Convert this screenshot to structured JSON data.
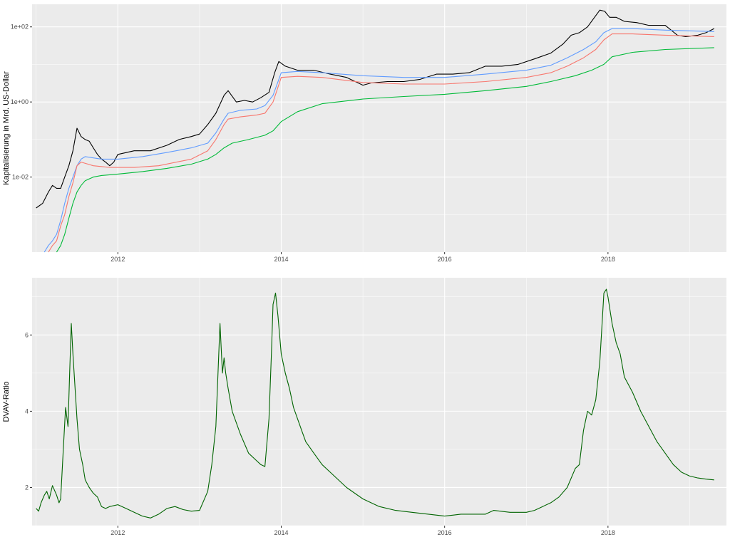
{
  "chart_data": [
    {
      "type": "line",
      "title": "",
      "xlabel": "",
      "ylabel": "Kapitalisierung in Mrd. US-Dollar",
      "y_scale": "log10",
      "xlim": [
        2010.95,
        2019.45
      ],
      "ylim": [
        0.0001,
        400
      ],
      "x_ticks": [
        2012,
        2014,
        2016,
        2018
      ],
      "x_tick_labels": [
        "2012",
        "2014",
        "2016",
        "2018"
      ],
      "y_ticks": [
        0.01,
        1,
        100
      ],
      "y_tick_labels": [
        "1e-02",
        "1e+00",
        "1e+02"
      ],
      "grid": true,
      "legend": "none",
      "series": [
        {
          "color": "#000000",
          "x": [
            2011.0,
            2011.08,
            2011.15,
            2011.2,
            2011.25,
            2011.3,
            2011.35,
            2011.4,
            2011.45,
            2011.5,
            2011.55,
            2011.6,
            2011.65,
            2011.7,
            2011.75,
            2011.8,
            2011.85,
            2011.9,
            2011.95,
            2012.0,
            2012.2,
            2012.4,
            2012.6,
            2012.75,
            2012.9,
            2013.0,
            2013.1,
            2013.2,
            2013.3,
            2013.35,
            2013.45,
            2013.55,
            2013.65,
            2013.75,
            2013.85,
            2013.92,
            2013.97,
            2014.05,
            2014.2,
            2014.4,
            2014.6,
            2014.8,
            2015.0,
            2015.1,
            2015.3,
            2015.5,
            2015.7,
            2015.9,
            2016.1,
            2016.3,
            2016.5,
            2016.7,
            2016.9,
            2017.1,
            2017.3,
            2017.45,
            2017.55,
            2017.65,
            2017.75,
            2017.85,
            2017.9,
            2017.96,
            2018.02,
            2018.1,
            2018.2,
            2018.35,
            2018.5,
            2018.7,
            2018.85,
            2018.95,
            2019.1,
            2019.2,
            2019.3
          ],
          "y": [
            0.0015,
            0.002,
            0.004,
            0.006,
            0.005,
            0.005,
            0.01,
            0.02,
            0.05,
            0.2,
            0.12,
            0.1,
            0.09,
            0.06,
            0.04,
            0.03,
            0.025,
            0.02,
            0.025,
            0.04,
            0.05,
            0.05,
            0.07,
            0.1,
            0.12,
            0.14,
            0.25,
            0.5,
            1.5,
            2.0,
            1.0,
            1.1,
            1.0,
            1.3,
            1.8,
            6.0,
            12.0,
            9.0,
            7.0,
            7.0,
            5.5,
            4.5,
            2.8,
            3.2,
            3.5,
            3.5,
            4.0,
            5.5,
            5.5,
            6.0,
            9.0,
            9.0,
            10.0,
            14.0,
            20.0,
            35.0,
            60.0,
            70.0,
            100.0,
            200.0,
            280.0,
            260.0,
            180.0,
            180.0,
            140.0,
            130.0,
            110.0,
            110.0,
            60.0,
            55.0,
            60.0,
            70.0,
            90.0
          ]
        },
        {
          "color": "#619cff",
          "x": [
            2011.1,
            2011.15,
            2011.2,
            2011.25,
            2011.3,
            2011.35,
            2011.4,
            2011.45,
            2011.5,
            2011.55,
            2011.6,
            2011.8,
            2012.0,
            2012.3,
            2012.6,
            2012.9,
            2013.1,
            2013.2,
            2013.3,
            2013.35,
            2013.5,
            2013.7,
            2013.8,
            2013.9,
            2014.0,
            2014.2,
            2014.5,
            2015.0,
            2015.5,
            2016.0,
            2016.5,
            2017.0,
            2017.3,
            2017.5,
            2017.7,
            2017.85,
            2017.95,
            2018.05,
            2018.3,
            2018.7,
            2019.3
          ],
          "y": [
            0.0001,
            0.00015,
            0.0002,
            0.0003,
            0.0007,
            0.002,
            0.005,
            0.01,
            0.02,
            0.03,
            0.035,
            0.03,
            0.03,
            0.035,
            0.045,
            0.06,
            0.08,
            0.15,
            0.35,
            0.5,
            0.6,
            0.65,
            0.8,
            1.5,
            6.0,
            6.5,
            6.0,
            5.0,
            4.5,
            4.5,
            5.5,
            7.0,
            9.5,
            15.0,
            25.0,
            40.0,
            70.0,
            90.0,
            90.0,
            82.0,
            75.0
          ]
        },
        {
          "color": "#f8766d",
          "x": [
            2011.15,
            2011.2,
            2011.25,
            2011.3,
            2011.35,
            2011.4,
            2011.45,
            2011.5,
            2011.55,
            2011.7,
            2011.9,
            2012.2,
            2012.5,
            2012.9,
            2013.1,
            2013.2,
            2013.3,
            2013.35,
            2013.5,
            2013.7,
            2013.8,
            2013.9,
            2014.0,
            2014.2,
            2014.5,
            2015.0,
            2015.5,
            2016.0,
            2016.5,
            2017.0,
            2017.3,
            2017.5,
            2017.7,
            2017.85,
            2017.95,
            2018.05,
            2018.3,
            2018.7,
            2019.3
          ],
          "y": [
            0.0001,
            0.00015,
            0.0002,
            0.0005,
            0.001,
            0.003,
            0.007,
            0.02,
            0.025,
            0.02,
            0.018,
            0.018,
            0.02,
            0.03,
            0.05,
            0.1,
            0.25,
            0.35,
            0.4,
            0.45,
            0.5,
            1.0,
            4.5,
            4.8,
            4.5,
            3.3,
            3.0,
            3.0,
            3.5,
            4.5,
            6.0,
            9.0,
            15.0,
            25.0,
            45.0,
            65.0,
            65.0,
            60.0,
            55.0
          ]
        },
        {
          "color": "#00ba38",
          "x": [
            2011.25,
            2011.3,
            2011.35,
            2011.4,
            2011.45,
            2011.5,
            2011.55,
            2011.6,
            2011.7,
            2011.8,
            2012.0,
            2012.3,
            2012.6,
            2012.9,
            2013.1,
            2013.2,
            2013.3,
            2013.4,
            2013.6,
            2013.8,
            2013.9,
            2014.0,
            2014.2,
            2014.5,
            2015.0,
            2015.5,
            2016.0,
            2016.5,
            2017.0,
            2017.3,
            2017.6,
            2017.8,
            2017.95,
            2018.05,
            2018.3,
            2018.7,
            2019.3
          ],
          "y": [
            0.0001,
            0.00015,
            0.0003,
            0.0008,
            0.002,
            0.004,
            0.006,
            0.008,
            0.01,
            0.011,
            0.012,
            0.014,
            0.017,
            0.022,
            0.03,
            0.04,
            0.06,
            0.08,
            0.1,
            0.13,
            0.17,
            0.3,
            0.55,
            0.9,
            1.2,
            1.4,
            1.6,
            2.0,
            2.6,
            3.5,
            5.0,
            7.0,
            10.0,
            16.0,
            21.0,
            25.0,
            28.0
          ]
        }
      ]
    },
    {
      "type": "line",
      "title": "",
      "xlabel": "",
      "ylabel": "DVAV-Ratio",
      "xlim": [
        2010.95,
        2019.45
      ],
      "ylim": [
        1.0,
        7.5
      ],
      "x_ticks": [
        2012,
        2014,
        2016,
        2018
      ],
      "x_tick_labels": [
        "2012",
        "2014",
        "2016",
        "2018"
      ],
      "y_ticks": [
        2,
        4,
        6
      ],
      "y_tick_labels": [
        "2",
        "4",
        "6"
      ],
      "grid": true,
      "legend": "none",
      "series": [
        {
          "color": "#006400",
          "x": [
            2011.0,
            2011.03,
            2011.06,
            2011.1,
            2011.13,
            2011.16,
            2011.2,
            2011.25,
            2011.28,
            2011.3,
            2011.33,
            2011.36,
            2011.39,
            2011.41,
            2011.43,
            2011.45,
            2011.5,
            2011.53,
            2011.57,
            2011.6,
            2011.65,
            2011.7,
            2011.75,
            2011.8,
            2011.85,
            2011.9,
            2012.0,
            2012.1,
            2012.2,
            2012.3,
            2012.4,
            2012.5,
            2012.6,
            2012.7,
            2012.8,
            2012.9,
            2013.0,
            2013.1,
            2013.15,
            2013.2,
            2013.25,
            2013.28,
            2013.3,
            2013.32,
            2013.35,
            2013.4,
            2013.5,
            2013.6,
            2013.7,
            2013.75,
            2013.8,
            2013.85,
            2013.88,
            2013.9,
            2013.93,
            2013.96,
            2014.0,
            2014.05,
            2014.1,
            2014.15,
            2014.2,
            2014.25,
            2014.3,
            2014.4,
            2014.5,
            2014.6,
            2014.8,
            2015.0,
            2015.2,
            2015.4,
            2015.6,
            2015.8,
            2016.0,
            2016.2,
            2016.4,
            2016.5,
            2016.6,
            2016.8,
            2017.0,
            2017.1,
            2017.2,
            2017.3,
            2017.4,
            2017.5,
            2017.6,
            2017.65,
            2017.7,
            2017.75,
            2017.8,
            2017.85,
            2017.9,
            2017.95,
            2017.98,
            2018.0,
            2018.05,
            2018.1,
            2018.15,
            2018.2,
            2018.3,
            2018.4,
            2018.5,
            2018.6,
            2018.7,
            2018.8,
            2018.9,
            2019.0,
            2019.1,
            2019.2,
            2019.3
          ],
          "y": [
            1.45,
            1.38,
            1.6,
            1.8,
            1.9,
            1.7,
            2.05,
            1.8,
            1.6,
            1.7,
            2.9,
            4.1,
            3.6,
            5.0,
            6.3,
            5.5,
            3.8,
            3.0,
            2.6,
            2.2,
            2.0,
            1.85,
            1.75,
            1.5,
            1.45,
            1.5,
            1.55,
            1.45,
            1.35,
            1.25,
            1.2,
            1.3,
            1.45,
            1.5,
            1.42,
            1.38,
            1.4,
            1.9,
            2.6,
            3.6,
            6.3,
            5.0,
            5.4,
            5.0,
            4.6,
            4.0,
            3.4,
            2.9,
            2.7,
            2.6,
            2.55,
            3.8,
            5.5,
            6.8,
            7.1,
            6.5,
            5.5,
            5.0,
            4.6,
            4.1,
            3.8,
            3.5,
            3.2,
            2.9,
            2.6,
            2.4,
            2.0,
            1.7,
            1.5,
            1.4,
            1.35,
            1.3,
            1.25,
            1.3,
            1.3,
            1.3,
            1.4,
            1.35,
            1.35,
            1.4,
            1.5,
            1.6,
            1.75,
            2.0,
            2.5,
            2.6,
            3.5,
            4.0,
            3.9,
            4.3,
            5.3,
            7.1,
            7.2,
            7.0,
            6.3,
            5.8,
            5.5,
            4.9,
            4.5,
            4.0,
            3.6,
            3.2,
            2.9,
            2.6,
            2.4,
            2.3,
            2.25,
            2.22,
            2.2
          ]
        }
      ]
    }
  ]
}
